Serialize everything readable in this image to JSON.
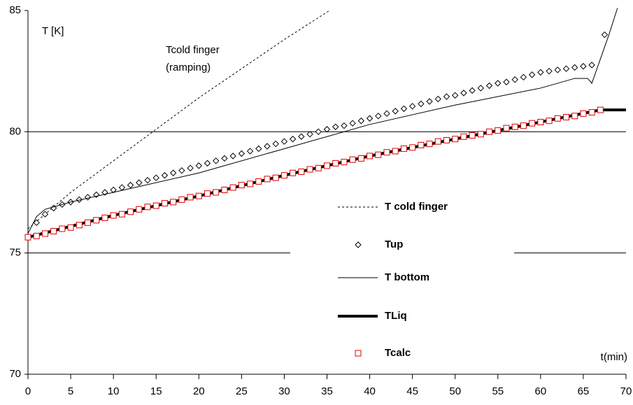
{
  "chart_data": {
    "type": "line",
    "annotations": [
      "T [K]",
      "Tcold finger",
      "(ramping)",
      "t(min)"
    ],
    "xlim": [
      0,
      70
    ],
    "xticks": [
      0,
      5,
      10,
      15,
      20,
      25,
      30,
      35,
      40,
      45,
      50,
      55,
      60,
      65,
      70
    ],
    "ylim": [
      70,
      85
    ],
    "yticks": [
      70,
      75,
      80,
      85
    ],
    "grid": true,
    "series": [
      {
        "name": "T cold finger",
        "color": "#000000",
        "style": "dotted",
        "x": [
          0,
          5,
          10,
          15,
          20,
          25,
          30,
          35.3
        ],
        "values": [
          76.0,
          77.5,
          78.8,
          80.1,
          81.4,
          82.6,
          83.8,
          85
        ]
      },
      {
        "name": "Tup",
        "color": "#000000",
        "style": "diamond",
        "x": [
          1,
          2,
          3,
          4,
          5,
          6,
          7,
          8,
          9,
          10,
          11,
          12,
          13,
          14,
          15,
          16,
          17,
          18,
          19,
          20,
          21,
          22,
          23,
          24,
          25,
          26,
          27,
          28,
          29,
          30,
          31,
          32,
          33,
          34,
          35,
          36,
          37,
          38,
          39,
          40,
          41,
          42,
          43,
          44,
          45,
          46,
          47,
          48,
          49,
          50,
          51,
          52,
          53,
          54,
          55,
          56,
          57,
          58,
          59,
          60,
          61,
          62,
          63,
          64,
          65,
          66,
          67.5
        ],
        "values": [
          76.25,
          76.6,
          76.85,
          77.0,
          77.1,
          77.2,
          77.3,
          77.4,
          77.5,
          77.6,
          77.7,
          77.8,
          77.9,
          78.0,
          78.1,
          78.2,
          78.3,
          78.4,
          78.5,
          78.6,
          78.7,
          78.8,
          78.9,
          79.0,
          79.1,
          79.2,
          79.3,
          79.4,
          79.5,
          79.6,
          79.7,
          79.8,
          79.9,
          80.0,
          80.1,
          80.2,
          80.25,
          80.35,
          80.45,
          80.55,
          80.65,
          80.75,
          80.85,
          80.95,
          81.05,
          81.15,
          81.25,
          81.35,
          81.45,
          81.5,
          81.6,
          81.7,
          81.8,
          81.9,
          82.0,
          82.05,
          82.15,
          82.25,
          82.35,
          82.45,
          82.5,
          82.55,
          82.6,
          82.65,
          82.7,
          82.75,
          84.0
        ]
      },
      {
        "name": "T bottom",
        "color": "#000000",
        "style": "line",
        "x": [
          0,
          1,
          2,
          5,
          10,
          20,
          30,
          40,
          50,
          60,
          64,
          65.5,
          66,
          67,
          68,
          69
        ],
        "values": [
          75.8,
          76.5,
          76.8,
          77.1,
          77.5,
          78.3,
          79.3,
          80.3,
          81.1,
          81.8,
          82.2,
          82.2,
          82.0,
          83.0,
          84.0,
          85.1
        ]
      },
      {
        "name": "TLiq",
        "color": "#000000",
        "style": "thick",
        "x": [
          0,
          10,
          20,
          30,
          40,
          50,
          60,
          67,
          70
        ],
        "values": [
          75.65,
          76.55,
          77.35,
          78.2,
          79.0,
          79.7,
          80.4,
          80.9,
          80.9
        ]
      },
      {
        "name": "Tcalc",
        "color": "#e00000",
        "style": "square",
        "x": [
          0,
          1,
          2,
          3,
          4,
          5,
          6,
          7,
          8,
          9,
          10,
          11,
          12,
          13,
          14,
          15,
          16,
          17,
          18,
          19,
          20,
          21,
          22,
          23,
          24,
          25,
          26,
          27,
          28,
          29,
          30,
          31,
          32,
          33,
          34,
          35,
          36,
          37,
          38,
          39,
          40,
          41,
          42,
          43,
          44,
          45,
          46,
          47,
          48,
          49,
          50,
          51,
          52,
          53,
          54,
          55,
          56,
          57,
          58,
          59,
          60,
          61,
          62,
          63,
          64,
          65,
          66,
          67
        ],
        "values": [
          75.65,
          75.7,
          75.8,
          75.9,
          76.0,
          76.05,
          76.15,
          76.25,
          76.35,
          76.45,
          76.55,
          76.6,
          76.7,
          76.8,
          76.9,
          76.95,
          77.05,
          77.1,
          77.2,
          77.3,
          77.35,
          77.45,
          77.5,
          77.6,
          77.7,
          77.8,
          77.85,
          77.95,
          78.05,
          78.1,
          78.2,
          78.3,
          78.35,
          78.45,
          78.5,
          78.6,
          78.7,
          78.75,
          78.85,
          78.9,
          79.0,
          79.05,
          79.15,
          79.2,
          79.3,
          79.35,
          79.45,
          79.5,
          79.6,
          79.65,
          79.7,
          79.8,
          79.85,
          79.9,
          80.0,
          80.05,
          80.15,
          80.2,
          80.25,
          80.35,
          80.4,
          80.45,
          80.55,
          80.6,
          80.65,
          80.75,
          80.8,
          80.9
        ]
      }
    ]
  }
}
